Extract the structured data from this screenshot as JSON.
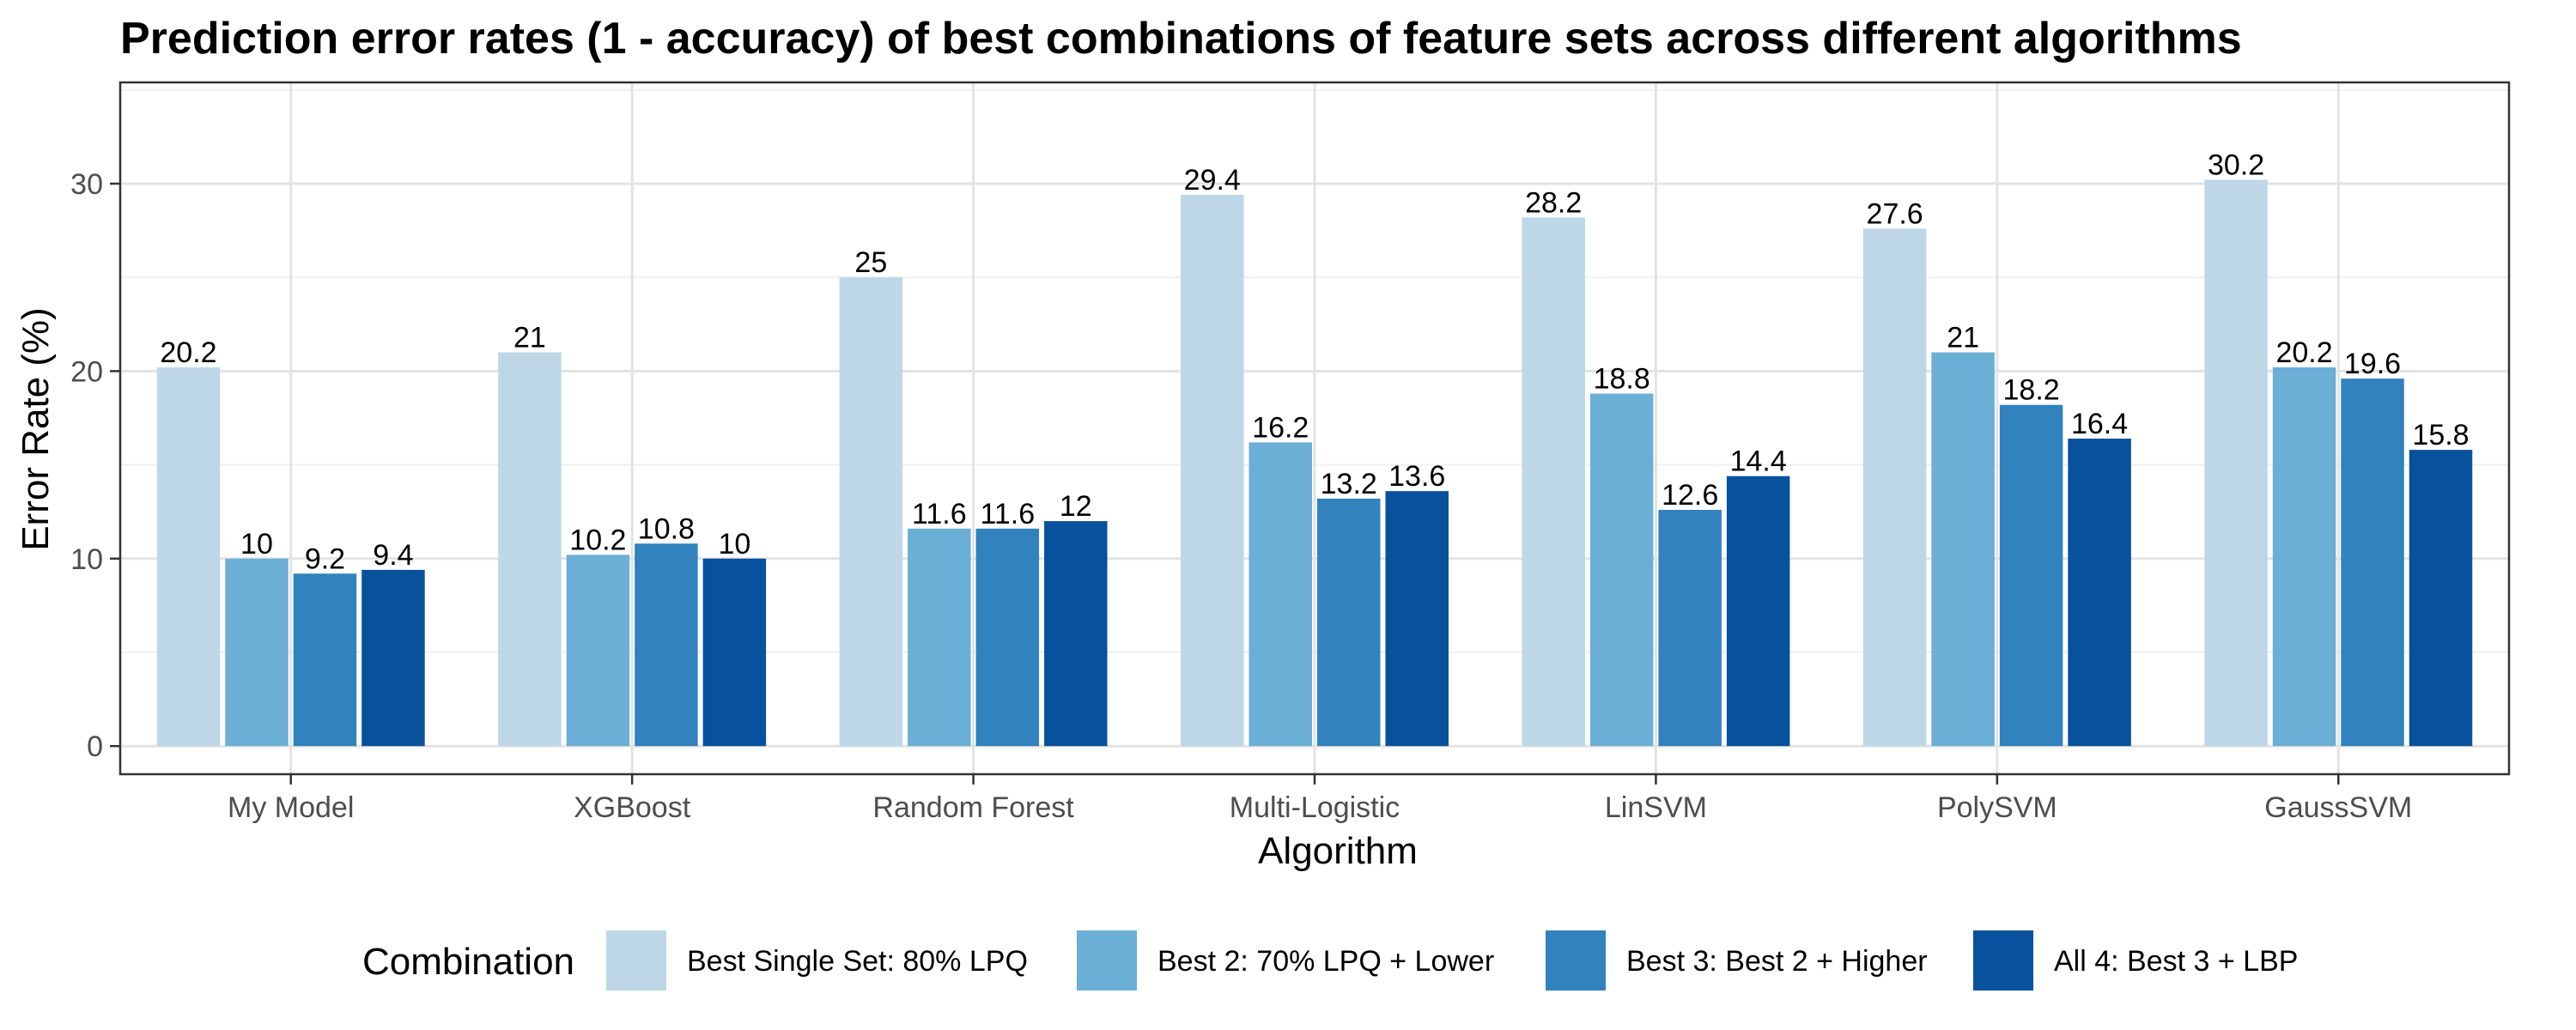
{
  "chart_data": {
    "type": "bar",
    "title": "Prediction error rates (1 - accuracy) of best combinations of feature sets across different algorithms",
    "xlabel": "Algorithm",
    "ylabel": "Error Rate (%)",
    "ylim": [
      0,
      35
    ],
    "yticks": [
      0,
      10,
      20,
      30
    ],
    "grid": true,
    "legend_title": "Combination",
    "legend_position": "bottom",
    "categories": [
      "My Model",
      "XGBoost",
      "Random Forest",
      "Multi-Logistic",
      "LinSVM",
      "PolySVM",
      "GaussSVM"
    ],
    "series": [
      {
        "name": "Best Single Set: 80% LPQ",
        "color": "#bdd7e7",
        "values": [
          20.2,
          21,
          25,
          29.4,
          28.2,
          27.6,
          30.2
        ]
      },
      {
        "name": "Best 2: 70% LPQ + Lower",
        "color": "#6baed6",
        "values": [
          10,
          10.2,
          11.6,
          16.2,
          18.8,
          21,
          20.2
        ]
      },
      {
        "name": "Best 3: Best 2 + Higher",
        "color": "#3182bd",
        "values": [
          9.2,
          10.8,
          11.6,
          13.2,
          12.6,
          18.2,
          19.6
        ]
      },
      {
        "name": "All 4: Best 3 + LBP",
        "color": "#08519c",
        "values": [
          9.4,
          10,
          12,
          13.6,
          14.4,
          16.4,
          15.8
        ]
      }
    ]
  }
}
